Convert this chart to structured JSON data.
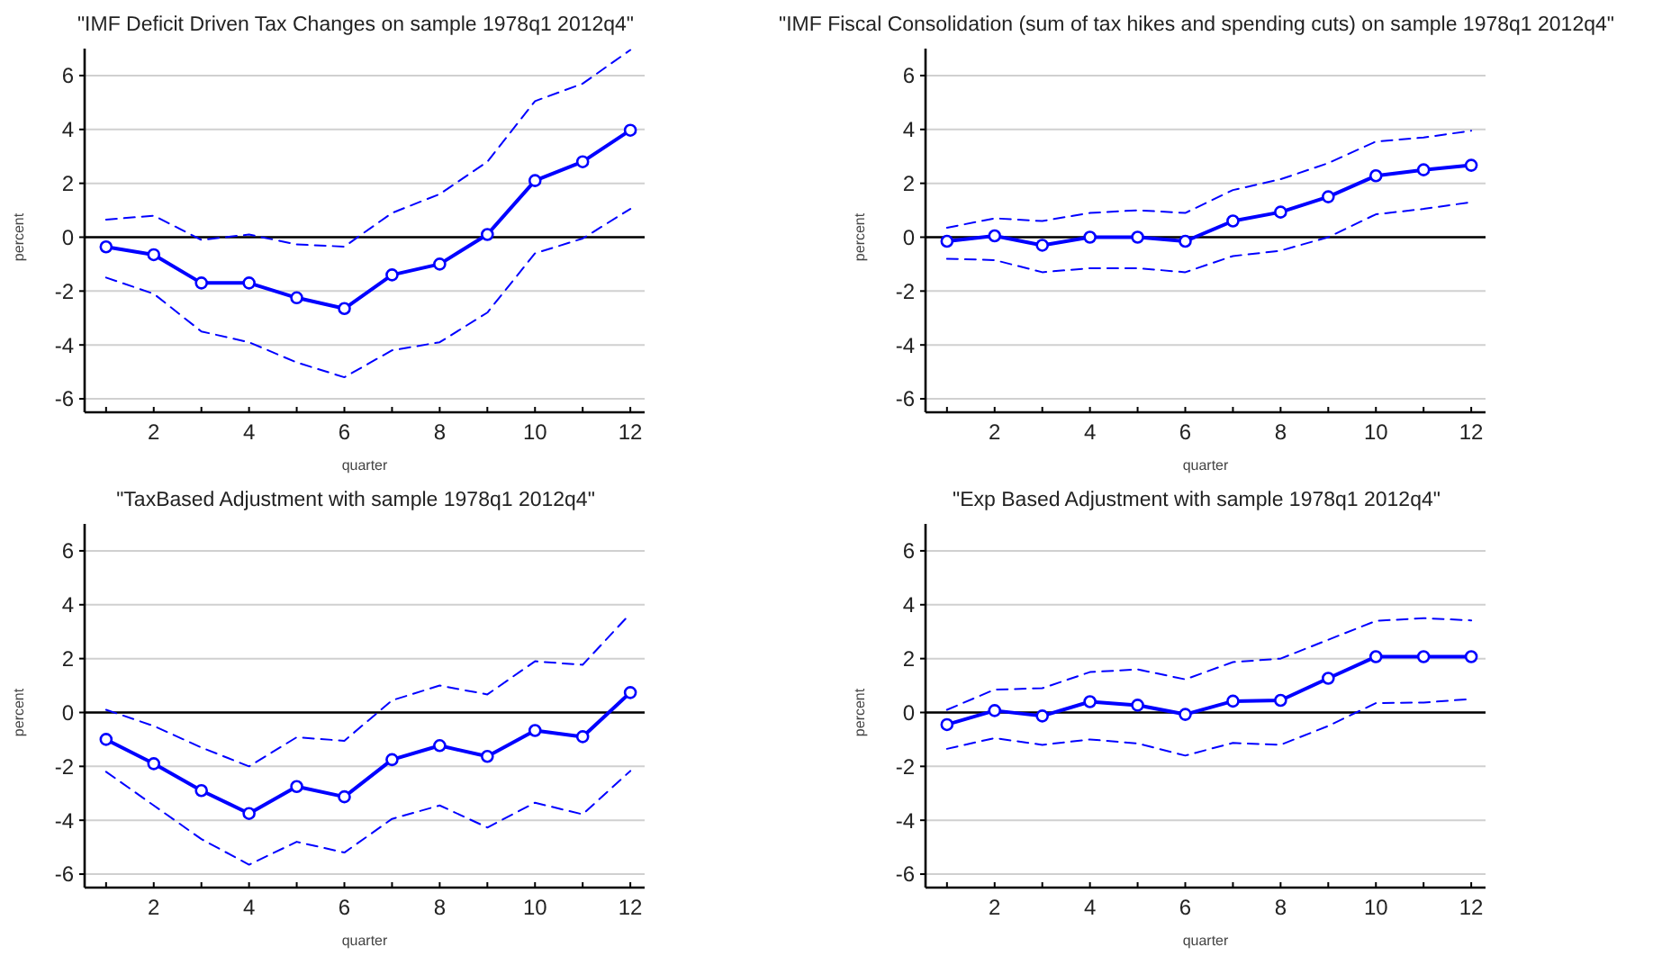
{
  "chart_data": [
    {
      "type": "line",
      "title": "\"IMF Deficit Driven Tax Changes on sample 1978q1 2012q4\"",
      "xlabel": "quarter",
      "ylabel": "percent",
      "x": [
        1,
        2,
        3,
        4,
        5,
        6,
        7,
        8,
        9,
        10,
        11,
        12
      ],
      "xlim": [
        0.55,
        12.3
      ],
      "xticks": [
        {
          "value": 1,
          "label": null
        },
        2,
        {
          "value": 3,
          "label": null
        },
        4,
        {
          "value": 5,
          "label": null
        },
        6,
        {
          "value": 7,
          "label": null
        },
        8,
        {
          "value": 9,
          "label": null
        },
        10,
        {
          "value": 11,
          "label": null
        },
        12
      ],
      "ylim": [
        -6.5,
        7
      ],
      "yticks": [
        -6,
        -4,
        -2,
        0,
        2,
        4,
        6
      ],
      "grid": "y",
      "ref_lines": [
        {
          "axis": "y",
          "value": 0,
          "color": "#000000"
        }
      ],
      "series": [
        {
          "color": "#0000ff",
          "marker": "circle",
          "line_style": "solid",
          "values": [
            -0.36,
            -0.65,
            -1.7,
            -1.7,
            -2.25,
            -2.65,
            -1.4,
            -1.0,
            0.1,
            2.1,
            2.8,
            3.97
          ]
        },
        {
          "color": "#0000ff",
          "marker": "none",
          "line_style": "dashed",
          "values": [
            -1.5,
            -2.1,
            -3.5,
            -3.9,
            -4.65,
            -5.2,
            -4.2,
            -3.9,
            -2.8,
            -0.6,
            -0.05,
            1.05
          ]
        },
        {
          "color": "#0000ff",
          "marker": "none",
          "line_style": "dashed",
          "values": [
            0.65,
            0.8,
            -0.1,
            0.1,
            -0.27,
            -0.35,
            0.9,
            1.6,
            2.8,
            5.05,
            5.7,
            6.95
          ]
        }
      ]
    },
    {
      "type": "line",
      "title": "\"IMF Fiscal Consolidation (sum of tax hikes and spending cuts) on sample 1978q1 2012q4\"",
      "xlabel": "quarter",
      "ylabel": "percent",
      "x": [
        1,
        2,
        3,
        4,
        5,
        6,
        7,
        8,
        9,
        10,
        11,
        12
      ],
      "xlim": [
        0.55,
        12.3
      ],
      "xticks": [
        {
          "value": 1,
          "label": null
        },
        2,
        {
          "value": 3,
          "label": null
        },
        4,
        {
          "value": 5,
          "label": null
        },
        6,
        {
          "value": 7,
          "label": null
        },
        8,
        {
          "value": 9,
          "label": null
        },
        10,
        {
          "value": 11,
          "label": null
        },
        12
      ],
      "ylim": [
        -6.5,
        7
      ],
      "yticks": [
        -6,
        -4,
        -2,
        0,
        2,
        4,
        6
      ],
      "grid": "y",
      "ref_lines": [
        {
          "axis": "y",
          "value": 0,
          "color": "#000000"
        }
      ],
      "series": [
        {
          "color": "#0000ff",
          "marker": "circle",
          "line_style": "solid",
          "values": [
            -0.15,
            0.05,
            -0.3,
            0,
            0,
            -0.15,
            0.6,
            0.93,
            1.5,
            2.28,
            2.5,
            2.67
          ]
        },
        {
          "color": "#0000ff",
          "marker": "none",
          "line_style": "dashed",
          "values": [
            -0.8,
            -0.85,
            -1.3,
            -1.15,
            -1.15,
            -1.3,
            -0.7,
            -0.5,
            0.0,
            0.85,
            1.05,
            1.3
          ]
        },
        {
          "color": "#0000ff",
          "marker": "none",
          "line_style": "dashed",
          "values": [
            0.35,
            0.7,
            0.6,
            0.9,
            1.0,
            0.9,
            1.75,
            2.15,
            2.75,
            3.55,
            3.7,
            3.95
          ]
        }
      ]
    },
    {
      "type": "line",
      "title": "\"TaxBased Adjustment with sample 1978q1 2012q4\"",
      "xlabel": "quarter",
      "ylabel": "percent",
      "x": [
        1,
        2,
        3,
        4,
        5,
        6,
        7,
        8,
        9,
        10,
        11,
        12
      ],
      "xlim": [
        0.55,
        12.3
      ],
      "xticks": [
        {
          "value": 1,
          "label": null
        },
        2,
        {
          "value": 3,
          "label": null
        },
        4,
        {
          "value": 5,
          "label": null
        },
        6,
        {
          "value": 7,
          "label": null
        },
        8,
        {
          "value": 9,
          "label": null
        },
        10,
        {
          "value": 11,
          "label": null
        },
        12
      ],
      "ylim": [
        -6.5,
        7
      ],
      "yticks": [
        -6,
        -4,
        -2,
        0,
        2,
        4,
        6
      ],
      "grid": "y",
      "ref_lines": [
        {
          "axis": "y",
          "value": 0,
          "color": "#000000"
        }
      ],
      "series": [
        {
          "color": "#0000ff",
          "marker": "circle",
          "line_style": "solid",
          "values": [
            -1.0,
            -1.9,
            -2.9,
            -3.75,
            -2.75,
            -3.13,
            -1.75,
            -1.23,
            -1.63,
            -0.67,
            -0.9,
            0.74
          ]
        },
        {
          "color": "#0000ff",
          "marker": "none",
          "line_style": "dashed",
          "values": [
            -2.2,
            -3.45,
            -4.7,
            -5.65,
            -4.8,
            -5.2,
            -3.95,
            -3.45,
            -4.27,
            -3.35,
            -3.78,
            -2.17
          ]
        },
        {
          "color": "#0000ff",
          "marker": "none",
          "line_style": "dashed",
          "values": [
            0.1,
            -0.5,
            -1.3,
            -2.0,
            -0.92,
            -1.05,
            0.45,
            1.0,
            0.67,
            1.9,
            1.77,
            3.67
          ]
        }
      ]
    },
    {
      "type": "line",
      "title": "\"Exp Based Adjustment with sample 1978q1 2012q4\"",
      "xlabel": "quarter",
      "ylabel": "percent",
      "x": [
        1,
        2,
        3,
        4,
        5,
        6,
        7,
        8,
        9,
        10,
        11,
        12
      ],
      "xlim": [
        0.55,
        12.3
      ],
      "xticks": [
        {
          "value": 1,
          "label": null
        },
        2,
        {
          "value": 3,
          "label": null
        },
        4,
        {
          "value": 5,
          "label": null
        },
        6,
        {
          "value": 7,
          "label": null
        },
        8,
        {
          "value": 9,
          "label": null
        },
        10,
        {
          "value": 11,
          "label": null
        },
        12
      ],
      "ylim": [
        -6.5,
        7
      ],
      "yticks": [
        -6,
        -4,
        -2,
        0,
        2,
        4,
        6
      ],
      "grid": "y",
      "ref_lines": [
        {
          "axis": "y",
          "value": 0,
          "color": "#000000"
        }
      ],
      "series": [
        {
          "color": "#0000ff",
          "marker": "circle",
          "line_style": "solid",
          "values": [
            -0.45,
            0.07,
            -0.13,
            0.4,
            0.27,
            -0.07,
            0.42,
            0.45,
            1.27,
            2.07,
            2.07,
            2.07
          ]
        },
        {
          "color": "#0000ff",
          "marker": "none",
          "line_style": "dashed",
          "values": [
            -1.35,
            -0.95,
            -1.2,
            -1.0,
            -1.15,
            -1.6,
            -1.13,
            -1.2,
            -0.5,
            0.35,
            0.37,
            0.5
          ]
        },
        {
          "color": "#0000ff",
          "marker": "none",
          "line_style": "dashed",
          "values": [
            0.1,
            0.85,
            0.9,
            1.5,
            1.6,
            1.23,
            1.87,
            2.0,
            2.7,
            3.4,
            3.5,
            3.42
          ]
        }
      ]
    }
  ]
}
